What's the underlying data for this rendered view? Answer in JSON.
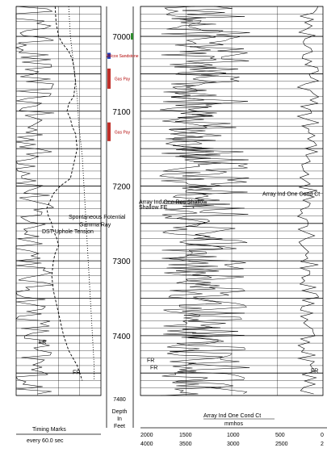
{
  "chart_data": {
    "type": "line",
    "title": "",
    "depth_axis": {
      "label_lines": [
        "Depth",
        "In",
        "Feet"
      ],
      "range": [
        6960,
        7480
      ],
      "ticks": [
        7000,
        7100,
        7200,
        7300,
        7400,
        7480
      ],
      "bottom_label": "7480"
    },
    "zones": [
      {
        "label": "Wilcox Sandstone",
        "top": 7022,
        "bottom": 7030,
        "color": "#1f3fbf"
      },
      {
        "label": "Gas Pay",
        "top": 7043,
        "bottom": 7070,
        "color": "#c0302a"
      },
      {
        "label": "Gas Pay",
        "top": 7115,
        "bottom": 7140,
        "color": "#c0302a"
      }
    ],
    "marker": {
      "depth": 7000,
      "color": "#2e8b2e"
    },
    "curve_labels": [
      {
        "text": "Array Ind One Res Shallow",
        "depth": 7224
      },
      {
        "text": "Shallow FE",
        "depth": 7231
      },
      {
        "text": "Spontaneous Potential",
        "depth": 7244
      },
      {
        "text": "Gamma Ray",
        "depth": 7254
      },
      {
        "text": "DST Uphole Tension",
        "depth": 7263
      },
      {
        "text": "Array Ind One Cond Ct",
        "depth": 7213
      }
    ],
    "fr_markers": [
      {
        "text": "FR",
        "depth": 7409,
        "track": "left"
      },
      {
        "text": "FR",
        "depth": 7449,
        "track": "left-dual"
      },
      {
        "text": "FR",
        "depth": 7433,
        "track": "right"
      },
      {
        "text": "FR",
        "depth": 7443,
        "track": "right"
      },
      {
        "text": "FR",
        "depth": 7447,
        "track": "far-right"
      }
    ],
    "tracks": {
      "left_footer": {
        "title": "Timing Marks",
        "subtitle": "every 60.0 sec"
      },
      "right_footer": {
        "title": "Array Ind One Cond Ct",
        "unit": "mmhos",
        "scale1": [
          "2000",
          "1500",
          "1000",
          "500",
          "0"
        ],
        "scale2": [
          "4000",
          "3500",
          "3000",
          "2500",
          "2"
        ]
      }
    },
    "series": [
      {
        "name": "Gamma Ray",
        "style": "dashed",
        "points": [
          [
            6960,
            46
          ],
          [
            6980,
            47
          ],
          [
            7000,
            50
          ],
          [
            7010,
            55
          ],
          [
            7020,
            62
          ],
          [
            7030,
            66
          ],
          [
            7040,
            68
          ],
          [
            7050,
            69
          ],
          [
            7060,
            70
          ],
          [
            7080,
            68
          ],
          [
            7090,
            62
          ],
          [
            7100,
            60
          ],
          [
            7110,
            64
          ],
          [
            7120,
            66
          ],
          [
            7130,
            70
          ],
          [
            7140,
            71
          ],
          [
            7150,
            72
          ],
          [
            7160,
            70
          ],
          [
            7170,
            68
          ],
          [
            7180,
            66
          ],
          [
            7190,
            64
          ],
          [
            7200,
            52
          ],
          [
            7210,
            44
          ],
          [
            7220,
            40
          ],
          [
            7230,
            36
          ],
          [
            7240,
            38
          ],
          [
            7250,
            42
          ],
          [
            7260,
            44
          ],
          [
            7270,
            48
          ],
          [
            7280,
            50
          ],
          [
            7290,
            46
          ],
          [
            7300,
            44
          ],
          [
            7320,
            42
          ],
          [
            7340,
            44
          ],
          [
            7360,
            48
          ],
          [
            7380,
            52
          ],
          [
            7400,
            56
          ],
          [
            7420,
            62
          ],
          [
            7440,
            72
          ],
          [
            7460,
            78
          ]
        ]
      },
      {
        "name": "Spontaneous Potential",
        "style": "dotted",
        "points": [
          [
            6960,
            62
          ],
          [
            7000,
            64
          ],
          [
            7040,
            68
          ],
          [
            7080,
            72
          ],
          [
            7120,
            74
          ],
          [
            7160,
            78
          ],
          [
            7200,
            80
          ],
          [
            7240,
            82
          ],
          [
            7280,
            84
          ],
          [
            7320,
            86
          ],
          [
            7360,
            88
          ],
          [
            7400,
            90
          ],
          [
            7440,
            92
          ],
          [
            7460,
            92
          ]
        ]
      }
    ]
  }
}
